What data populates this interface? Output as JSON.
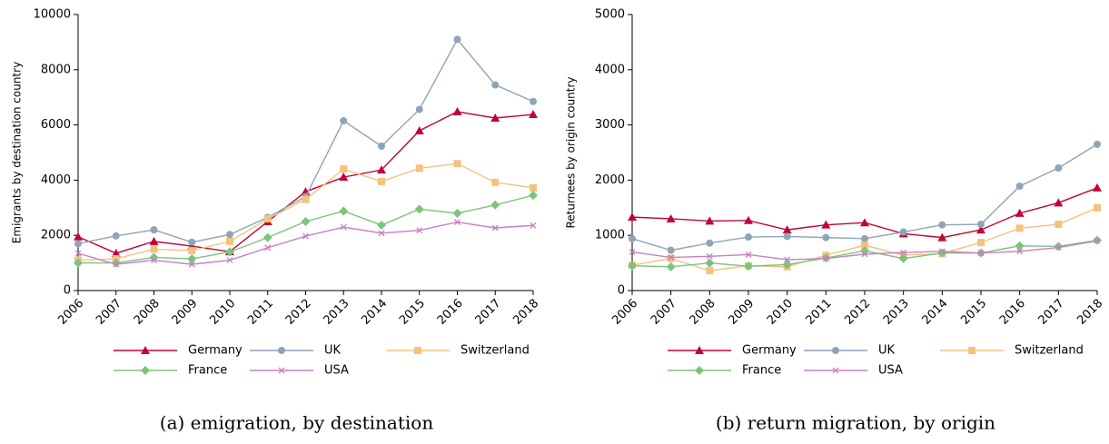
{
  "chart_data": [
    {
      "type": "line",
      "caption": "(a) emigration, by destination",
      "y_label": "Emigrants by destination country",
      "categories": [
        "2006",
        "2007",
        "2008",
        "2009",
        "2010",
        "2011",
        "2012",
        "2013",
        "2014",
        "2015",
        "2016",
        "2017",
        "2018"
      ],
      "ylim": [
        0,
        10000
      ],
      "yticks": [
        0,
        2000,
        4000,
        6000,
        8000,
        10000
      ],
      "series": [
        {
          "name": "Germany",
          "color": "#c10534",
          "marker": "triangle",
          "values": [
            1950,
            1350,
            1780,
            1610,
            1410,
            2500,
            3580,
            4110,
            4370,
            5790,
            6480,
            6250,
            6380
          ]
        },
        {
          "name": "UK",
          "color": "#8fa4b8",
          "marker": "circle",
          "values": [
            1700,
            1980,
            2200,
            1750,
            2030,
            2650,
            3400,
            6150,
            5230,
            6560,
            9100,
            7450,
            6850
          ]
        },
        {
          "name": "Switzerland",
          "color": "#f5c27e",
          "marker": "square",
          "values": [
            1100,
            1150,
            1500,
            1450,
            1780,
            2600,
            3300,
            4400,
            3950,
            4430,
            4600,
            3920,
            3720
          ]
        },
        {
          "name": "France",
          "color": "#7cc47c",
          "marker": "diamond",
          "values": [
            1000,
            1000,
            1200,
            1150,
            1400,
            1920,
            2500,
            2880,
            2370,
            2950,
            2800,
            3100,
            3450
          ]
        },
        {
          "name": "USA",
          "color": "#c77fc4",
          "marker": "x",
          "values": [
            1350,
            950,
            1100,
            950,
            1100,
            1550,
            1970,
            2300,
            2080,
            2180,
            2480,
            2270,
            2360
          ]
        }
      ]
    },
    {
      "type": "line",
      "caption": "(b) return migration, by origin",
      "y_label": "Returnees by origin country",
      "categories": [
        "2006",
        "2007",
        "2008",
        "2009",
        "2010",
        "2011",
        "2012",
        "2013",
        "2014",
        "2015",
        "2016",
        "2017",
        "2018"
      ],
      "ylim": [
        0,
        5000
      ],
      "yticks": [
        0,
        1000,
        2000,
        3000,
        4000,
        5000
      ],
      "series": [
        {
          "name": "Germany",
          "color": "#c10534",
          "marker": "triangle",
          "values": [
            1330,
            1300,
            1260,
            1270,
            1100,
            1190,
            1230,
            1030,
            960,
            1100,
            1400,
            1590,
            1860
          ]
        },
        {
          "name": "UK",
          "color": "#8fa4b8",
          "marker": "circle",
          "values": [
            940,
            730,
            860,
            970,
            980,
            960,
            940,
            1060,
            1190,
            1200,
            1890,
            2220,
            2650
          ]
        },
        {
          "name": "Switzerland",
          "color": "#f5c27e",
          "marker": "square",
          "values": [
            460,
            580,
            360,
            450,
            430,
            640,
            820,
            640,
            670,
            870,
            1130,
            1200,
            1500
          ]
        },
        {
          "name": "France",
          "color": "#7cc47c",
          "marker": "diamond",
          "values": [
            450,
            430,
            500,
            440,
            470,
            590,
            720,
            580,
            680,
            680,
            810,
            800,
            910
          ]
        },
        {
          "name": "USA",
          "color": "#c77fc4",
          "marker": "x",
          "values": [
            700,
            600,
            620,
            650,
            560,
            580,
            660,
            690,
            710,
            680,
            710,
            780,
            900
          ]
        }
      ]
    }
  ]
}
